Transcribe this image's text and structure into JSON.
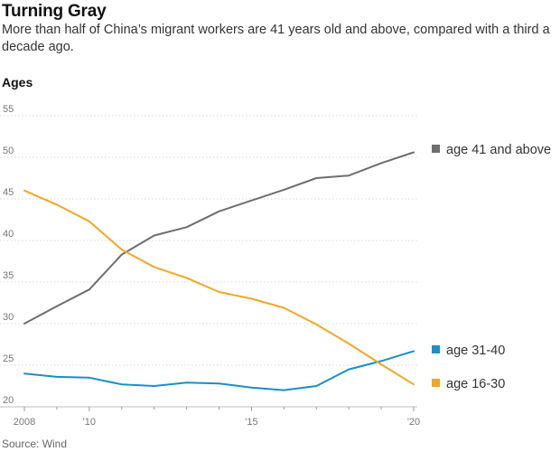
{
  "header": {
    "title": "Turning Gray",
    "subtitle": "More than half of China’s migrant workers are 41 years old and above, compared with a third a decade ago.",
    "y_title": "Ages",
    "source": "Source: Wind"
  },
  "chart_data": {
    "type": "line",
    "title": "Turning Gray",
    "subtitle": "More than half of China’s migrant workers are 41 years old and above, compared with a third a decade ago.",
    "ylabel": "Ages",
    "xlabel": "",
    "x": [
      2008,
      2009,
      2010,
      2011,
      2012,
      2013,
      2014,
      2015,
      2016,
      2017,
      2018,
      2019,
      2020
    ],
    "xlim": [
      2008,
      2020
    ],
    "ylim": [
      20,
      55
    ],
    "yticks": [
      20,
      25,
      30,
      35,
      40,
      45,
      50,
      55
    ],
    "xticks": [
      {
        "value": 2008,
        "label": "2008"
      },
      {
        "value": 2010,
        "label": "'10"
      },
      {
        "value": 2015,
        "label": "'15"
      },
      {
        "value": 2020,
        "label": "'20"
      }
    ],
    "grid": "horizontal",
    "legend_position": "right, at line ends",
    "series": [
      {
        "name": "age 41 and above",
        "color": "#6e6e6e",
        "values": [
          30.0,
          32.1,
          34.1,
          38.3,
          40.6,
          41.6,
          43.5,
          44.8,
          46.1,
          47.5,
          47.8,
          49.3,
          50.6
        ]
      },
      {
        "name": "age 31-40",
        "color": "#1a8fc9",
        "values": [
          24.0,
          23.6,
          23.5,
          22.7,
          22.5,
          22.9,
          22.8,
          22.3,
          22.0,
          22.5,
          24.5,
          25.5,
          26.7
        ]
      },
      {
        "name": "age 16-30",
        "color": "#f5a623",
        "values": [
          46.0,
          44.3,
          42.3,
          38.9,
          36.8,
          35.5,
          33.8,
          33.0,
          31.9,
          29.9,
          27.6,
          25.1,
          22.7
        ]
      }
    ]
  }
}
